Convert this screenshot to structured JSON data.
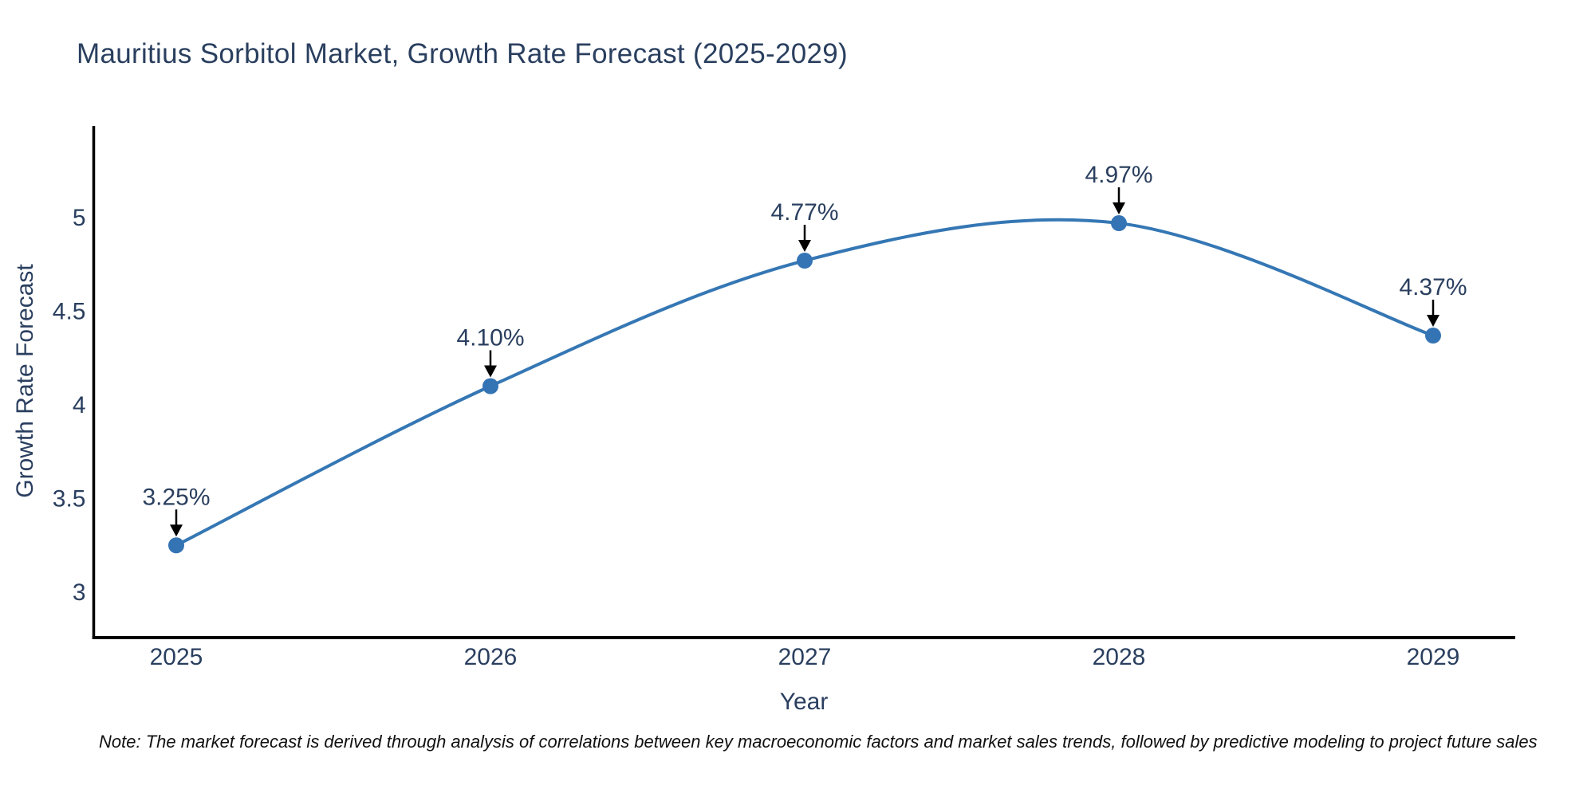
{
  "chart": {
    "note": "Note: The market forecast is derived through analysis of correlations between key macroeconomic factors and market sales trends, followed by predictive modeling to project future sales"
  },
  "chart_data": {
    "type": "line",
    "title": "Mauritius Sorbitol Market, Growth Rate Forecast (2025-2029)",
    "xlabel": "Year",
    "ylabel": "Growth Rate Forecast",
    "x": [
      2025,
      2026,
      2027,
      2028,
      2029
    ],
    "xticklabels": [
      "2025",
      "2026",
      "2027",
      "2028",
      "2029"
    ],
    "values": [
      3.25,
      4.1,
      4.77,
      4.97,
      4.37
    ],
    "point_labels": [
      "3.25%",
      "4.10%",
      "4.77%",
      "4.97%",
      "4.37%"
    ],
    "yticks": [
      3,
      3.5,
      4,
      4.5,
      5
    ],
    "ytick_labels": [
      "3",
      "3.5",
      "4",
      "4.5",
      "5"
    ],
    "ylim": [
      2.76,
      5.49
    ],
    "line_shape": "spline",
    "grid": false,
    "legend": "none",
    "colors": {
      "line": "#3577b4",
      "marker": "#3474b4",
      "text": "#2a3f5f",
      "axis": "#000000",
      "annotation_arrow": "#000000",
      "note_text": "#111111",
      "background": "#ffffff"
    }
  }
}
